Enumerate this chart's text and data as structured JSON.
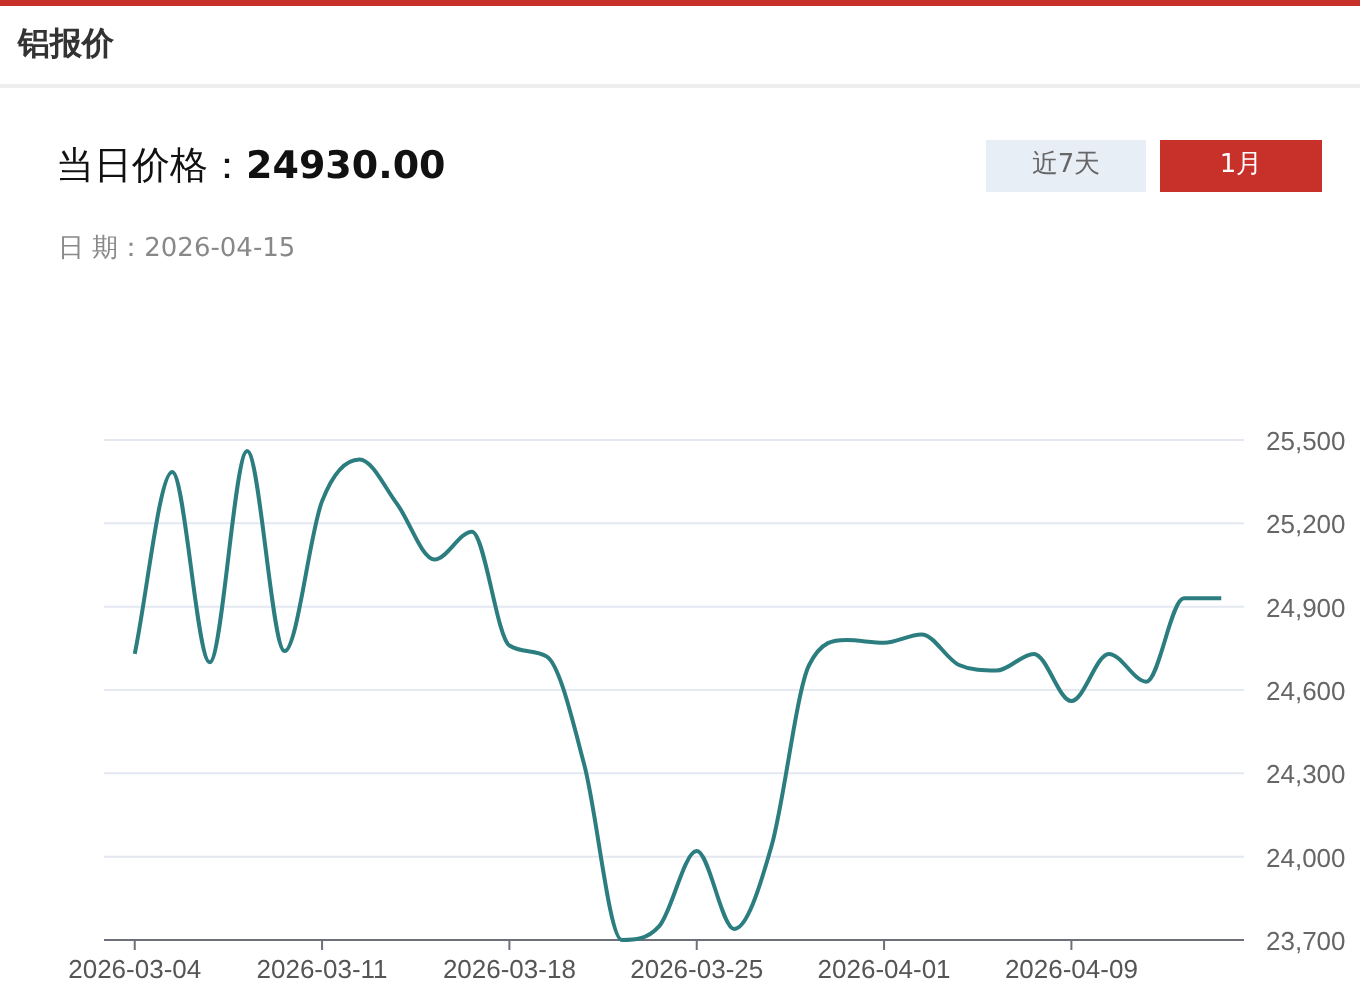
{
  "chart_data": {
    "type": "line",
    "title": "铝报价",
    "subtitle": "当日价格：**24930.00**",
    "annotations": [
      "日 期：2026-04-15",
      "近7天",
      "1月"
    ],
    "categories": [
      "2026-03-04",
      null,
      null,
      null,
      null,
      "2026-03-11",
      null,
      null,
      null,
      null,
      "2026-03-18",
      null,
      null,
      null,
      null,
      "2026-03-25",
      null,
      null,
      null,
      null,
      "2026-04-01",
      null,
      null,
      null,
      null,
      "2026-04-09",
      null,
      null,
      null,
      null
    ],
    "series": [
      {
        "color": "#2b7d80",
        "values": [
          24730,
          25385,
          24700,
          25460,
          24740,
          25280,
          25430,
          25270,
          25070,
          25170,
          24760,
          24720,
          24330,
          23700,
          23750,
          24020,
          23740,
          24040,
          24690,
          24780,
          24770,
          24800,
          24690,
          24670,
          24730,
          24560,
          24730,
          24630,
          24930,
          24930
        ]
      }
    ],
    "ylim": [
      23700,
      25500
    ],
    "yticks": [
      {
        "value": 23700,
        "label": "23,700"
      },
      {
        "value": 24000,
        "label": "24,000"
      },
      {
        "value": 24300,
        "label": "24,300"
      },
      {
        "value": 24600,
        "label": "24,600"
      },
      {
        "value": 24900,
        "label": "24,900"
      },
      {
        "value": 25200,
        "label": "25,200"
      },
      {
        "value": 25500,
        "label": "25,500"
      }
    ],
    "grid": "y"
  }
}
